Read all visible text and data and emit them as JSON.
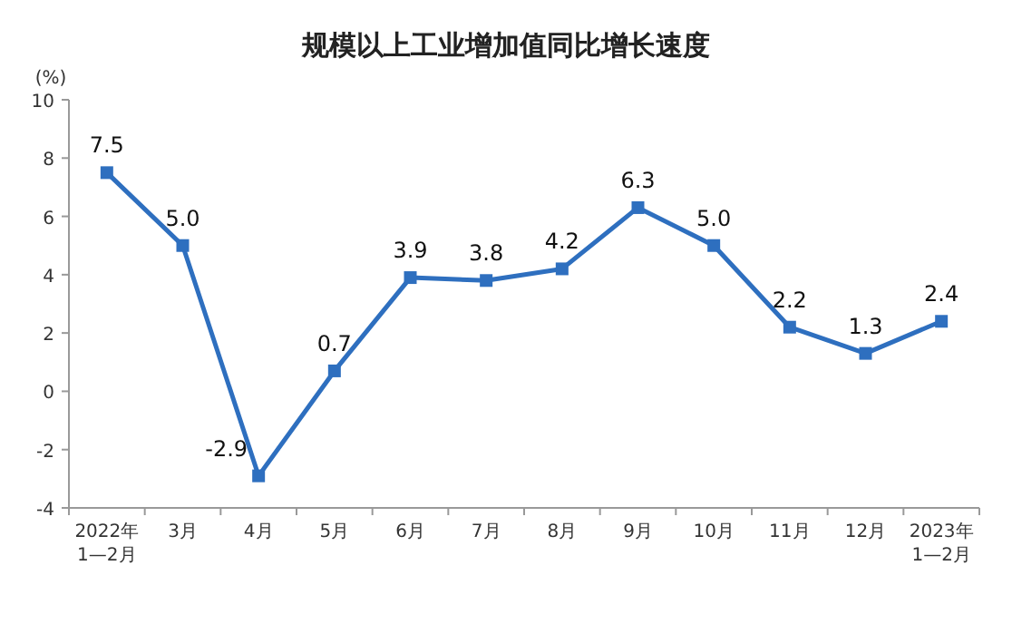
{
  "chart_data": {
    "type": "line",
    "title": "规模以上工业增加值同比增长速度",
    "ylabel": "(%)",
    "categories": [
      "2022年\n1—2月",
      "3月",
      "4月",
      "5月",
      "6月",
      "7月",
      "8月",
      "9月",
      "10月",
      "11月",
      "12月",
      "2023年\n1—2月"
    ],
    "series": [
      {
        "color": "#2e6fbf",
        "values": [
          7.5,
          5.0,
          -2.9,
          0.7,
          3.9,
          3.8,
          4.2,
          6.3,
          5.0,
          2.2,
          1.3,
          2.4
        ],
        "value_labels": [
          "7.5",
          "5.0",
          "-2.9",
          "0.7",
          "3.9",
          "3.8",
          "4.2",
          "6.3",
          "5.0",
          "2.2",
          "1.3",
          "2.4"
        ]
      }
    ],
    "ylim": [
      -4,
      10
    ],
    "yticks": [
      -4,
      -2,
      0,
      2,
      4,
      6,
      8,
      10
    ],
    "marker": "square"
  }
}
